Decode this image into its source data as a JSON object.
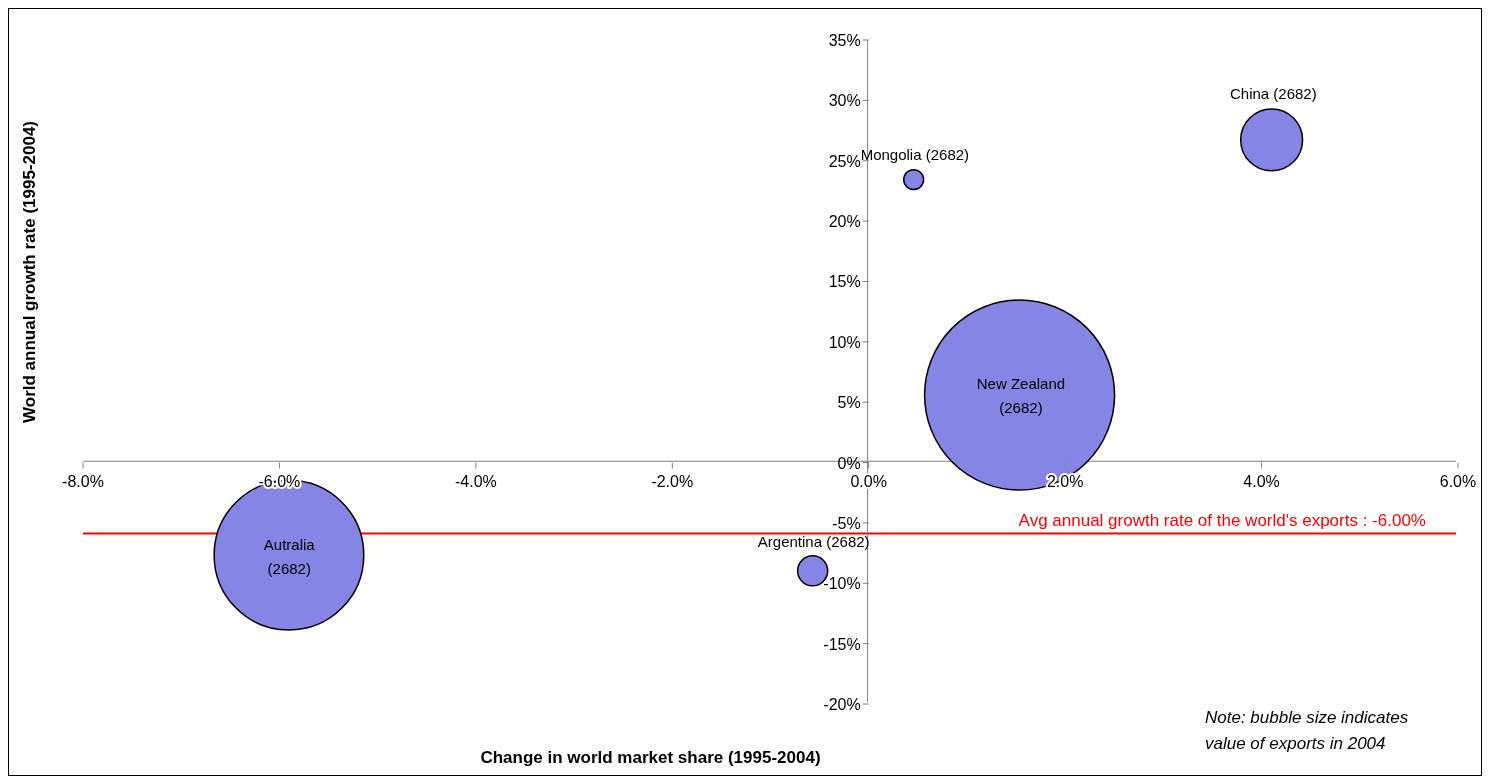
{
  "chart_data": {
    "type": "bubble",
    "xlabel": "Change in world market share (1995-2004)",
    "ylabel": "World annual growth rate (1995-2004)",
    "series": [
      {
        "color": "#8585e6",
        "x": [
          4.12,
          0.47,
          1.55,
          -0.56,
          -5.9
        ],
        "values": [
          26.7,
          23.4,
          5.5,
          -9.1,
          -7.8
        ],
        "sizes": [
          0.106,
          0.011,
          1,
          0.025,
          0.62
        ]
      }
    ],
    "xlim": [
      -8,
      6
    ],
    "xticks": [
      {
        "value": -8,
        "label": "-8.0%"
      },
      {
        "value": -6,
        "label": "-6.0%"
      },
      {
        "value": -4,
        "label": "-4.0%"
      },
      {
        "value": -2,
        "label": "-2.0%"
      },
      {
        "value": 0,
        "label": "0.0%"
      },
      {
        "value": 2,
        "label": "2.0%"
      },
      {
        "value": 4,
        "label": "4.0%"
      },
      {
        "value": 6,
        "label": "6.0%"
      }
    ],
    "ylim": [
      -20,
      35
    ],
    "yticks": [
      {
        "value": -20,
        "label": "-20%"
      },
      {
        "value": -15,
        "label": "-15%"
      },
      {
        "value": -10,
        "label": "-10%"
      },
      {
        "value": -5,
        "label": "-5%"
      },
      {
        "value": 0,
        "label": "0%"
      },
      {
        "value": 5,
        "label": "5%"
      },
      {
        "value": 10,
        "label": "10%"
      },
      {
        "value": 15,
        "label": "15%"
      },
      {
        "value": 20,
        "label": "20%"
      },
      {
        "value": 25,
        "label": "25%"
      },
      {
        "value": 30,
        "label": "30%"
      },
      {
        "value": 35,
        "label": "35%"
      }
    ],
    "ref_lines": [
      {
        "axis": "y",
        "value": -6,
        "label": "Avg annual growth rate of the world's exports : -6.00%",
        "color": "#ff0000"
      }
    ],
    "annotations": [
      {
        "text": "China (2682)",
        "x": 4.12,
        "y": 26.7
      },
      {
        "text": "Mongolia (2682)",
        "x": 0.47,
        "y": 23.4
      },
      {
        "text": "New Zealand\n(2682)",
        "x": 1.55,
        "y": 5.5
      },
      {
        "text": "Argentina (2682)",
        "x": -0.56,
        "y": -9.1
      },
      {
        "text": "Autralia\n(2682)",
        "x": -5.9,
        "y": -7.8
      },
      "Note: bubble size indicates\nvalue of exports in 2004"
    ]
  }
}
